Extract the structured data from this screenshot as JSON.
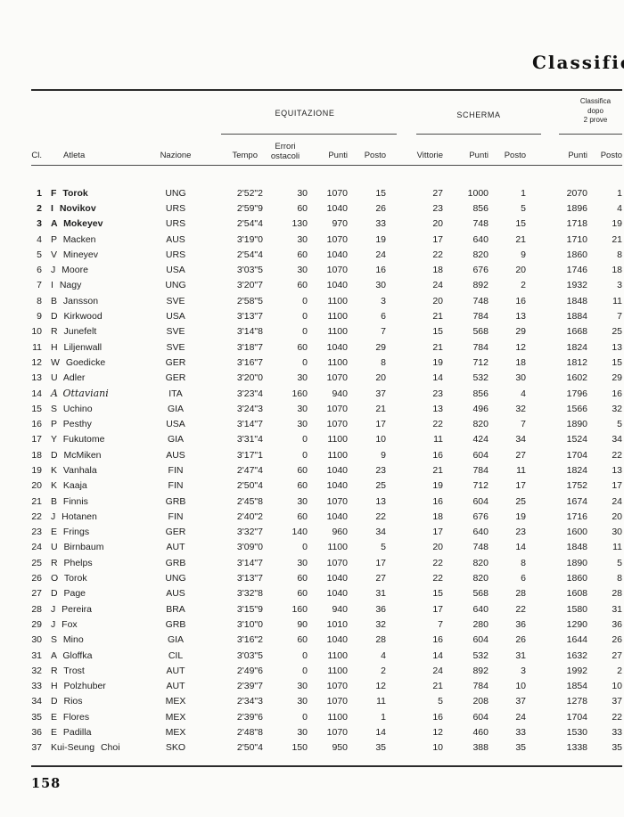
{
  "page": {
    "title": "Classifica",
    "page_number": "158"
  },
  "table": {
    "groups": {
      "equitazione": "EQUITAZIONE",
      "scherma": "SCHERMA",
      "classifica_line1": "Classifica",
      "classifica_line2": "dopo",
      "classifica_line3": "2  prove"
    },
    "header": {
      "cl": "Cl.",
      "atleta": "Atleta",
      "nazione": "Nazione",
      "tempo": "Tempo",
      "errori_line1": "Errori",
      "errori_line2": "ostacoli",
      "punti": "Punti",
      "posto": "Posto",
      "vittorie": "Vittorie"
    },
    "rows": [
      {
        "cl": "1",
        "name": "F Torok",
        "nation": "UNG",
        "tempo": "2'52\"2",
        "errori": "30",
        "punti_eq": "1070",
        "posto_eq": "15",
        "vittorie": "27",
        "punti_sc": "1000",
        "posto_sc": "1",
        "punti_tot": "2070",
        "posto_tot": "1",
        "style": "bold"
      },
      {
        "cl": "2",
        "name": "I Novikov",
        "nation": "URS",
        "tempo": "2'59\"9",
        "errori": "60",
        "punti_eq": "1040",
        "posto_eq": "26",
        "vittorie": "23",
        "punti_sc": "856",
        "posto_sc": "5",
        "punti_tot": "1896",
        "posto_tot": "4",
        "style": "bold"
      },
      {
        "cl": "3",
        "name": "A Mokeyev",
        "nation": "URS",
        "tempo": "2'54\"4",
        "errori": "130",
        "punti_eq": "970",
        "posto_eq": "33",
        "vittorie": "20",
        "punti_sc": "748",
        "posto_sc": "15",
        "punti_tot": "1718",
        "posto_tot": "19",
        "style": "bold"
      },
      {
        "cl": "4",
        "name": "P Macken",
        "nation": "AUS",
        "tempo": "3'19\"0",
        "errori": "30",
        "punti_eq": "1070",
        "posto_eq": "19",
        "vittorie": "17",
        "punti_sc": "640",
        "posto_sc": "21",
        "punti_tot": "1710",
        "posto_tot": "21",
        "style": ""
      },
      {
        "cl": "5",
        "name": "V Mineyev",
        "nation": "URS",
        "tempo": "2'54\"4",
        "errori": "60",
        "punti_eq": "1040",
        "posto_eq": "24",
        "vittorie": "22",
        "punti_sc": "820",
        "posto_sc": "9",
        "punti_tot": "1860",
        "posto_tot": "8",
        "style": ""
      },
      {
        "cl": "6",
        "name": "J Moore",
        "nation": "USA",
        "tempo": "3'03\"5",
        "errori": "30",
        "punti_eq": "1070",
        "posto_eq": "16",
        "vittorie": "18",
        "punti_sc": "676",
        "posto_sc": "20",
        "punti_tot": "1746",
        "posto_tot": "18",
        "style": ""
      },
      {
        "cl": "7",
        "name": "I Nagy",
        "nation": "UNG",
        "tempo": "3'20\"7",
        "errori": "60",
        "punti_eq": "1040",
        "posto_eq": "30",
        "vittorie": "24",
        "punti_sc": "892",
        "posto_sc": "2",
        "punti_tot": "1932",
        "posto_tot": "3",
        "style": ""
      },
      {
        "cl": "8",
        "name": "B Jansson",
        "nation": "SVE",
        "tempo": "2'58\"5",
        "errori": "0",
        "punti_eq": "1100",
        "posto_eq": "3",
        "vittorie": "20",
        "punti_sc": "748",
        "posto_sc": "16",
        "punti_tot": "1848",
        "posto_tot": "11",
        "style": ""
      },
      {
        "cl": "9",
        "name": "D Kirkwood",
        "nation": "USA",
        "tempo": "3'13\"7",
        "errori": "0",
        "punti_eq": "1100",
        "posto_eq": "6",
        "vittorie": "21",
        "punti_sc": "784",
        "posto_sc": "13",
        "punti_tot": "1884",
        "posto_tot": "7",
        "style": ""
      },
      {
        "cl": "10",
        "name": "R Junefelt",
        "nation": "SVE",
        "tempo": "3'14\"8",
        "errori": "0",
        "punti_eq": "1100",
        "posto_eq": "7",
        "vittorie": "15",
        "punti_sc": "568",
        "posto_sc": "29",
        "punti_tot": "1668",
        "posto_tot": "25",
        "style": ""
      },
      {
        "cl": "11",
        "name": "H Liljenwall",
        "nation": "SVE",
        "tempo": "3'18\"7",
        "errori": "60",
        "punti_eq": "1040",
        "posto_eq": "29",
        "vittorie": "21",
        "punti_sc": "784",
        "posto_sc": "12",
        "punti_tot": "1824",
        "posto_tot": "13",
        "style": ""
      },
      {
        "cl": "12",
        "name": "W Goedicke",
        "nation": "GER",
        "tempo": "3'16\"7",
        "errori": "0",
        "punti_eq": "1100",
        "posto_eq": "8",
        "vittorie": "19",
        "punti_sc": "712",
        "posto_sc": "18",
        "punti_tot": "1812",
        "posto_tot": "15",
        "style": ""
      },
      {
        "cl": "13",
        "name": "U Adler",
        "nation": "GER",
        "tempo": "3'20\"0",
        "errori": "30",
        "punti_eq": "1070",
        "posto_eq": "20",
        "vittorie": "14",
        "punti_sc": "532",
        "posto_sc": "30",
        "punti_tot": "1602",
        "posto_tot": "29",
        "style": ""
      },
      {
        "cl": "14",
        "name": "A Ottaviani",
        "nation": "ITA",
        "tempo": "3'23\"4",
        "errori": "160",
        "punti_eq": "940",
        "posto_eq": "37",
        "vittorie": "23",
        "punti_sc": "856",
        "posto_sc": "4",
        "punti_tot": "1796",
        "posto_tot": "16",
        "style": "italic"
      },
      {
        "cl": "15",
        "name": "S Uchino",
        "nation": "GIA",
        "tempo": "3'24\"3",
        "errori": "30",
        "punti_eq": "1070",
        "posto_eq": "21",
        "vittorie": "13",
        "punti_sc": "496",
        "posto_sc": "32",
        "punti_tot": "1566",
        "posto_tot": "32",
        "style": ""
      },
      {
        "cl": "16",
        "name": "P Pesthy",
        "nation": "USA",
        "tempo": "3'14\"7",
        "errori": "30",
        "punti_eq": "1070",
        "posto_eq": "17",
        "vittorie": "22",
        "punti_sc": "820",
        "posto_sc": "7",
        "punti_tot": "1890",
        "posto_tot": "5",
        "style": ""
      },
      {
        "cl": "17",
        "name": "Y Fukutome",
        "nation": "GIA",
        "tempo": "3'31\"4",
        "errori": "0",
        "punti_eq": "1100",
        "posto_eq": "10",
        "vittorie": "11",
        "punti_sc": "424",
        "posto_sc": "34",
        "punti_tot": "1524",
        "posto_tot": "34",
        "style": ""
      },
      {
        "cl": "18",
        "name": "D McMiken",
        "nation": "AUS",
        "tempo": "3'17\"1",
        "errori": "0",
        "punti_eq": "1100",
        "posto_eq": "9",
        "vittorie": "16",
        "punti_sc": "604",
        "posto_sc": "27",
        "punti_tot": "1704",
        "posto_tot": "22",
        "style": ""
      },
      {
        "cl": "19",
        "name": "K Vanhala",
        "nation": "FIN",
        "tempo": "2'47\"4",
        "errori": "60",
        "punti_eq": "1040",
        "posto_eq": "23",
        "vittorie": "21",
        "punti_sc": "784",
        "posto_sc": "11",
        "punti_tot": "1824",
        "posto_tot": "13",
        "style": ""
      },
      {
        "cl": "20",
        "name": "K Kaaja",
        "nation": "FIN",
        "tempo": "2'50\"4",
        "errori": "60",
        "punti_eq": "1040",
        "posto_eq": "25",
        "vittorie": "19",
        "punti_sc": "712",
        "posto_sc": "17",
        "punti_tot": "1752",
        "posto_tot": "17",
        "style": ""
      },
      {
        "cl": "21",
        "name": "B Finnis",
        "nation": "GRB",
        "tempo": "2'45\"8",
        "errori": "30",
        "punti_eq": "1070",
        "posto_eq": "13",
        "vittorie": "16",
        "punti_sc": "604",
        "posto_sc": "25",
        "punti_tot": "1674",
        "posto_tot": "24",
        "style": ""
      },
      {
        "cl": "22",
        "name": "J Hotanen",
        "nation": "FIN",
        "tempo": "2'40\"2",
        "errori": "60",
        "punti_eq": "1040",
        "posto_eq": "22",
        "vittorie": "18",
        "punti_sc": "676",
        "posto_sc": "19",
        "punti_tot": "1716",
        "posto_tot": "20",
        "style": ""
      },
      {
        "cl": "23",
        "name": "E Frings",
        "nation": "GER",
        "tempo": "3'32\"7",
        "errori": "140",
        "punti_eq": "960",
        "posto_eq": "34",
        "vittorie": "17",
        "punti_sc": "640",
        "posto_sc": "23",
        "punti_tot": "1600",
        "posto_tot": "30",
        "style": ""
      },
      {
        "cl": "24",
        "name": "U Birnbaum",
        "nation": "AUT",
        "tempo": "3'09\"0",
        "errori": "0",
        "punti_eq": "1100",
        "posto_eq": "5",
        "vittorie": "20",
        "punti_sc": "748",
        "posto_sc": "14",
        "punti_tot": "1848",
        "posto_tot": "11",
        "style": ""
      },
      {
        "cl": "25",
        "name": "R Phelps",
        "nation": "GRB",
        "tempo": "3'14\"7",
        "errori": "30",
        "punti_eq": "1070",
        "posto_eq": "17",
        "vittorie": "22",
        "punti_sc": "820",
        "posto_sc": "8",
        "punti_tot": "1890",
        "posto_tot": "5",
        "style": ""
      },
      {
        "cl": "26",
        "name": "O Torok",
        "nation": "UNG",
        "tempo": "3'13\"7",
        "errori": "60",
        "punti_eq": "1040",
        "posto_eq": "27",
        "vittorie": "22",
        "punti_sc": "820",
        "posto_sc": "6",
        "punti_tot": "1860",
        "posto_tot": "8",
        "style": ""
      },
      {
        "cl": "27",
        "name": "D Page",
        "nation": "AUS",
        "tempo": "3'32\"8",
        "errori": "60",
        "punti_eq": "1040",
        "posto_eq": "31",
        "vittorie": "15",
        "punti_sc": "568",
        "posto_sc": "28",
        "punti_tot": "1608",
        "posto_tot": "28",
        "style": ""
      },
      {
        "cl": "28",
        "name": "J Pereira",
        "nation": "BRA",
        "tempo": "3'15\"9",
        "errori": "160",
        "punti_eq": "940",
        "posto_eq": "36",
        "vittorie": "17",
        "punti_sc": "640",
        "posto_sc": "22",
        "punti_tot": "1580",
        "posto_tot": "31",
        "style": ""
      },
      {
        "cl": "29",
        "name": "J Fox",
        "nation": "GRB",
        "tempo": "3'10\"0",
        "errori": "90",
        "punti_eq": "1010",
        "posto_eq": "32",
        "vittorie": "7",
        "punti_sc": "280",
        "posto_sc": "36",
        "punti_tot": "1290",
        "posto_tot": "36",
        "style": ""
      },
      {
        "cl": "30",
        "name": "S Mino",
        "nation": "GIA",
        "tempo": "3'16\"2",
        "errori": "60",
        "punti_eq": "1040",
        "posto_eq": "28",
        "vittorie": "16",
        "punti_sc": "604",
        "posto_sc": "26",
        "punti_tot": "1644",
        "posto_tot": "26",
        "style": ""
      },
      {
        "cl": "31",
        "name": "A Gloffka",
        "nation": "CIL",
        "tempo": "3'03\"5",
        "errori": "0",
        "punti_eq": "1100",
        "posto_eq": "4",
        "vittorie": "14",
        "punti_sc": "532",
        "posto_sc": "31",
        "punti_tot": "1632",
        "posto_tot": "27",
        "style": ""
      },
      {
        "cl": "32",
        "name": "R Trost",
        "nation": "AUT",
        "tempo": "2'49\"6",
        "errori": "0",
        "punti_eq": "1100",
        "posto_eq": "2",
        "vittorie": "24",
        "punti_sc": "892",
        "posto_sc": "3",
        "punti_tot": "1992",
        "posto_tot": "2",
        "style": ""
      },
      {
        "cl": "33",
        "name": "H Polzhuber",
        "nation": "AUT",
        "tempo": "2'39\"7",
        "errori": "30",
        "punti_eq": "1070",
        "posto_eq": "12",
        "vittorie": "21",
        "punti_sc": "784",
        "posto_sc": "10",
        "punti_tot": "1854",
        "posto_tot": "10",
        "style": ""
      },
      {
        "cl": "34",
        "name": "D Rios",
        "nation": "MEX",
        "tempo": "2'34\"3",
        "errori": "30",
        "punti_eq": "1070",
        "posto_eq": "11",
        "vittorie": "5",
        "punti_sc": "208",
        "posto_sc": "37",
        "punti_tot": "1278",
        "posto_tot": "37",
        "style": ""
      },
      {
        "cl": "35",
        "name": "E Flores",
        "nation": "MEX",
        "tempo": "2'39\"6",
        "errori": "0",
        "punti_eq": "1100",
        "posto_eq": "1",
        "vittorie": "16",
        "punti_sc": "604",
        "posto_sc": "24",
        "punti_tot": "1704",
        "posto_tot": "22",
        "style": ""
      },
      {
        "cl": "36",
        "name": "E Padilla",
        "nation": "MEX",
        "tempo": "2'48\"8",
        "errori": "30",
        "punti_eq": "1070",
        "posto_eq": "14",
        "vittorie": "12",
        "punti_sc": "460",
        "posto_sc": "33",
        "punti_tot": "1530",
        "posto_tot": "33",
        "style": ""
      },
      {
        "cl": "37",
        "name": "Kui-Seung Choi",
        "nation": "SKO",
        "tempo": "2'50\"4",
        "errori": "150",
        "punti_eq": "950",
        "posto_eq": "35",
        "vittorie": "10",
        "punti_sc": "388",
        "posto_sc": "35",
        "punti_tot": "1338",
        "posto_tot": "35",
        "style": ""
      }
    ]
  }
}
